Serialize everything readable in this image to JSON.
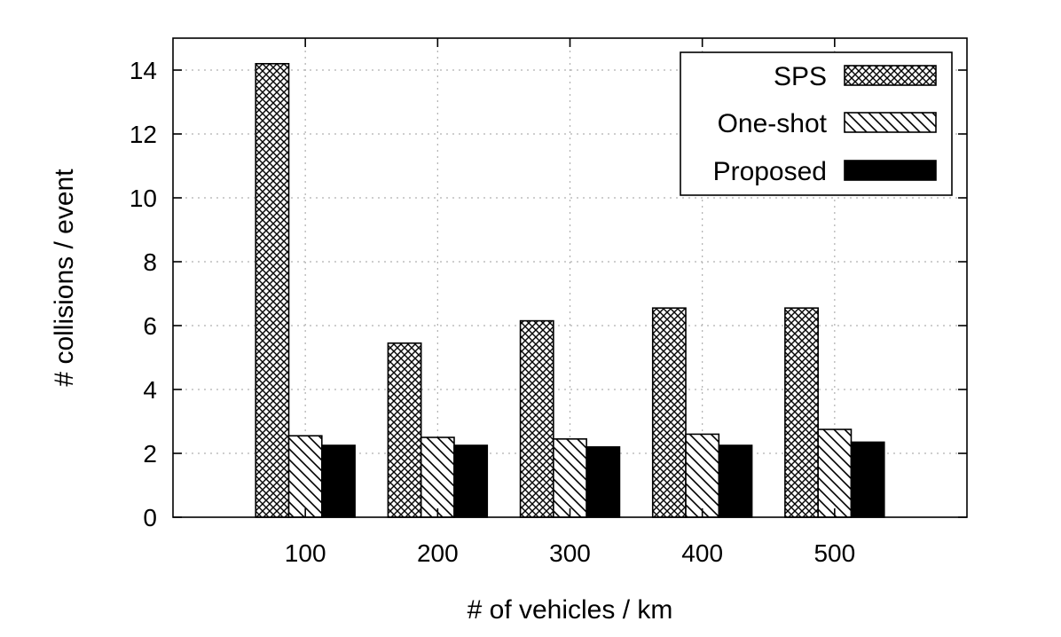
{
  "chart_data": {
    "type": "bar",
    "xlabel": "# of vehicles / km",
    "ylabel": "# collisions / event",
    "categories": [
      "100",
      "200",
      "300",
      "400",
      "500"
    ],
    "series": [
      {
        "name": "SPS",
        "values": [
          14.2,
          5.45,
          6.15,
          6.55,
          6.55
        ],
        "pattern": "crosshatch"
      },
      {
        "name": "One-shot",
        "values": [
          2.55,
          2.5,
          2.45,
          2.6,
          2.75
        ],
        "pattern": "diagonal"
      },
      {
        "name": "Proposed",
        "values": [
          2.25,
          2.25,
          2.2,
          2.25,
          2.35
        ],
        "pattern": "solid",
        "color": "#000000"
      }
    ],
    "ylim": [
      0,
      15
    ],
    "yticks": [
      0,
      2,
      4,
      6,
      8,
      10,
      12,
      14
    ],
    "xlim": [
      0,
      6
    ],
    "grid": true,
    "legend": "top-right"
  }
}
